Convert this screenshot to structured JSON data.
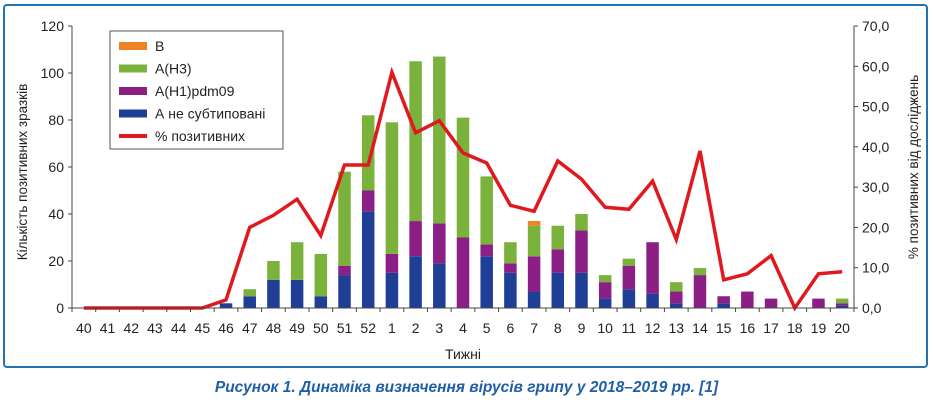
{
  "caption": "Рисунок 1.  Динаміка визначення вірусів грипу у 2018–2019 рр. [1]",
  "chart_data": {
    "type": "bar",
    "stacked": true,
    "xlabel": "Тижні",
    "ylabel": "Кількість позитивних зразків",
    "y2label": "% позитивних від досліджень",
    "ylim": [
      0,
      120
    ],
    "y_ticks": [
      "0",
      "20",
      "40",
      "60",
      "80",
      "100",
      "120"
    ],
    "y2lim": [
      0,
      70
    ],
    "y2_ticks": [
      "0,0",
      "10,0",
      "20,0",
      "30,0",
      "40,0",
      "50,0",
      "60,0",
      "70,0"
    ],
    "legend_position": "top-left",
    "categories": [
      "40",
      "41",
      "42",
      "43",
      "44",
      "45",
      "46",
      "47",
      "48",
      "49",
      "50",
      "51",
      "52",
      "1",
      "2",
      "3",
      "4",
      "5",
      "6",
      "7",
      "8",
      "9",
      "10",
      "11",
      "12",
      "13",
      "14",
      "15",
      "16",
      "17",
      "18",
      "19",
      "20"
    ],
    "series": [
      {
        "name": "А не субтиповані",
        "color": "#1f3f97",
        "values": [
          0,
          0,
          0,
          0,
          0,
          0,
          2,
          5,
          12,
          12,
          5,
          14,
          41,
          15,
          22,
          19,
          0,
          22,
          15,
          7,
          15,
          15,
          4,
          8,
          6,
          2,
          0,
          2,
          0,
          0,
          0,
          0,
          1
        ]
      },
      {
        "name": "А(Н1)pdm09",
        "color": "#8b1f86",
        "values": [
          0,
          0,
          0,
          0,
          0,
          0,
          0,
          0,
          0,
          0,
          0,
          4,
          9,
          8,
          15,
          17,
          30,
          5,
          4,
          15,
          10,
          18,
          7,
          10,
          22,
          5,
          14,
          3,
          7,
          4,
          0,
          4,
          1
        ]
      },
      {
        "name": "А(Н3)",
        "color": "#7ab23c",
        "values": [
          0,
          0,
          0,
          0,
          0,
          0,
          0,
          3,
          8,
          16,
          18,
          40,
          32,
          56,
          68,
          71,
          51,
          29,
          9,
          13,
          10,
          7,
          3,
          3,
          0,
          4,
          3,
          0,
          0,
          0,
          0,
          0,
          2
        ]
      },
      {
        "name": "В",
        "color": "#f08226",
        "values": [
          0,
          0,
          0,
          0,
          0,
          0,
          0,
          0,
          0,
          0,
          0,
          0,
          0,
          0,
          0,
          0,
          0,
          0,
          0,
          2,
          0,
          0,
          0,
          0,
          0,
          0,
          0,
          0,
          0,
          0,
          0,
          0,
          0
        ]
      }
    ],
    "line": {
      "name": "% позитивних",
      "color": "#e0191f",
      "axis": "right",
      "values": [
        0,
        0,
        0,
        0,
        0,
        0,
        2,
        20,
        23,
        27,
        18,
        35.5,
        35.5,
        58.5,
        43.5,
        46.5,
        38.5,
        36,
        25.5,
        24,
        36.5,
        32,
        25,
        24.5,
        31.5,
        17,
        39,
        7,
        8.5,
        13,
        0,
        8.5,
        9
      ]
    },
    "legend_order": [
      "В",
      "А(Н3)",
      "А(Н1)pdm09",
      "А не субтиповані",
      "% позитивних"
    ]
  }
}
